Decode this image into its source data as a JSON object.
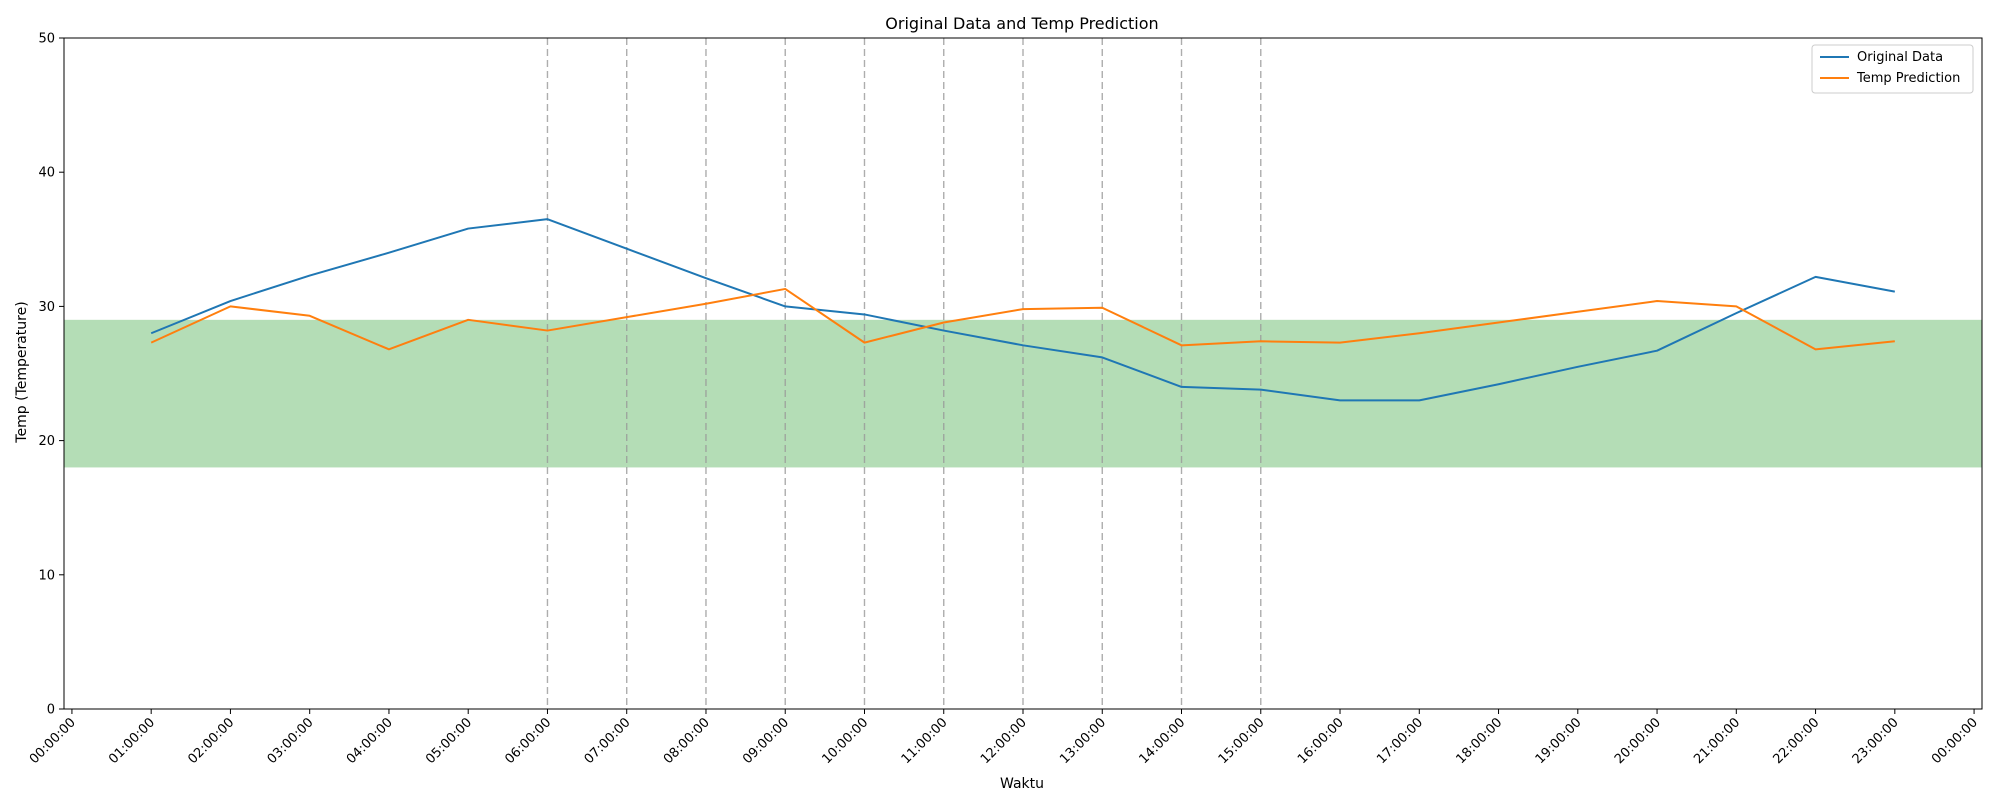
{
  "chart_data": {
    "type": "line",
    "title": "Original Data and Temp Prediction",
    "xlabel": "Waktu",
    "ylabel": "Temp (Temperature)",
    "ylim": [
      0,
      50
    ],
    "yticks": [
      0,
      10,
      20,
      30,
      40,
      50
    ],
    "xlim": [
      -0.1,
      24.1
    ],
    "xtick_labels": [
      "00:00:00",
      "01:00:00",
      "02:00:00",
      "03:00:00",
      "04:00:00",
      "05:00:00",
      "06:00:00",
      "07:00:00",
      "08:00:00",
      "09:00:00",
      "10:00:00",
      "11:00:00",
      "12:00:00",
      "13:00:00",
      "14:00:00",
      "15:00:00",
      "16:00:00",
      "17:00:00",
      "18:00:00",
      "19:00:00",
      "20:00:00",
      "21:00:00",
      "22:00:00",
      "23:00:00",
      "00:00:00"
    ],
    "highlighted_hours": [
      6,
      7,
      8,
      9,
      10,
      11,
      12,
      13,
      14,
      15
    ],
    "highlight_color": "#ff0000",
    "comfort_band": {
      "ymin": 18,
      "ymax": 29,
      "color": "#4caf50"
    },
    "grid": false,
    "legend_position": "top-right",
    "x": [
      1,
      2,
      3,
      4,
      5,
      6,
      7,
      8,
      9,
      10,
      11,
      12,
      13,
      14,
      15,
      16,
      17,
      18,
      19,
      20,
      21,
      22,
      23
    ],
    "series": [
      {
        "name": "Original Data",
        "color": "#1f77b4",
        "values": [
          28.0,
          30.4,
          32.3,
          34.0,
          35.8,
          36.5,
          34.3,
          32.1,
          30.0,
          29.4,
          28.2,
          27.1,
          26.2,
          24.0,
          23.8,
          23.0,
          23.0,
          24.2,
          25.5,
          26.7,
          29.5,
          32.2,
          31.1
        ]
      },
      {
        "name": "Temp Prediction",
        "color": "#ff7f0e",
        "values": [
          27.3,
          30.0,
          29.3,
          26.8,
          29.0,
          28.2,
          29.2,
          30.2,
          31.3,
          27.3,
          28.8,
          29.8,
          29.9,
          27.1,
          27.4,
          27.3,
          28.0,
          28.8,
          29.6,
          30.4,
          30.0,
          26.8,
          27.4
        ]
      }
    ]
  }
}
